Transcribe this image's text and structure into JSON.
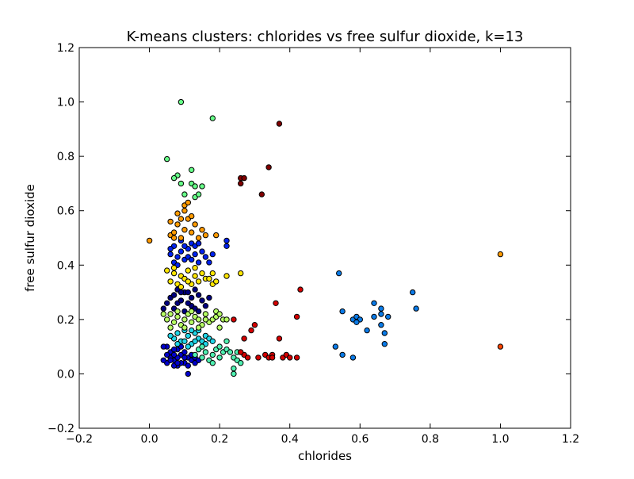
{
  "chart_data": {
    "type": "scatter",
    "title": "K-means clusters: chlorides vs free sulfur dioxide, k=13",
    "xlabel": "chlorides",
    "ylabel": "free sulfur dioxide",
    "xlim": [
      -0.2,
      1.2
    ],
    "ylim": [
      -0.2,
      1.2
    ],
    "xticks": [
      "−0.2",
      "0.0",
      "0.2",
      "0.4",
      "0.6",
      "0.8",
      "1.0",
      "1.2"
    ],
    "yticks": [
      "−0.2",
      "0.0",
      "0.2",
      "0.4",
      "0.6",
      "0.8",
      "1.0",
      "1.2"
    ],
    "grid": false,
    "legend": "none",
    "series": [
      {
        "color": "#00007f",
        "points": [
          [
            0.06,
            0.28
          ],
          [
            0.08,
            0.26
          ],
          [
            0.1,
            0.3
          ],
          [
            0.12,
            0.25
          ],
          [
            0.14,
            0.29
          ],
          [
            0.07,
            0.24
          ],
          [
            0.09,
            0.27
          ],
          [
            0.11,
            0.3
          ],
          [
            0.13,
            0.24
          ],
          [
            0.15,
            0.27
          ],
          [
            0.08,
            0.31
          ],
          [
            0.1,
            0.23
          ],
          [
            0.12,
            0.28
          ],
          [
            0.05,
            0.26
          ],
          [
            0.16,
            0.25
          ],
          [
            0.04,
            0.24
          ],
          [
            0.11,
            0.26
          ],
          [
            0.09,
            0.3
          ],
          [
            0.13,
            0.31
          ],
          [
            0.07,
            0.29
          ],
          [
            0.17,
            0.28
          ],
          [
            0.14,
            0.23
          ]
        ]
      },
      {
        "color": "#0000cc",
        "points": [
          [
            0.05,
            0.04
          ],
          [
            0.06,
            0.06
          ],
          [
            0.07,
            0.05
          ],
          [
            0.08,
            0.03
          ],
          [
            0.09,
            0.07
          ],
          [
            0.1,
            0.04
          ],
          [
            0.11,
            0.06
          ],
          [
            0.12,
            0.05
          ],
          [
            0.06,
            0.08
          ],
          [
            0.07,
            0.03
          ],
          [
            0.05,
            0.07
          ],
          [
            0.08,
            0.06
          ],
          [
            0.04,
            0.05
          ],
          [
            0.09,
            0.04
          ],
          [
            0.1,
            0.08
          ],
          [
            0.11,
            0.03
          ],
          [
            0.12,
            0.07
          ],
          [
            0.13,
            0.04
          ],
          [
            0.06,
            0.05
          ],
          [
            0.07,
            0.07
          ],
          [
            0.08,
            0.09
          ],
          [
            0.05,
            0.1
          ],
          [
            0.09,
            0.1
          ],
          [
            0.1,
            0.06
          ],
          [
            0.11,
            0.0
          ],
          [
            0.04,
            0.1
          ],
          [
            0.13,
            0.06
          ],
          [
            0.14,
            0.05
          ],
          [
            0.07,
            0.09
          ],
          [
            0.08,
            0.04
          ]
        ]
      },
      {
        "color": "#0022ee",
        "points": [
          [
            0.06,
            0.44
          ],
          [
            0.07,
            0.47
          ],
          [
            0.08,
            0.43
          ],
          [
            0.09,
            0.49
          ],
          [
            0.1,
            0.42
          ],
          [
            0.11,
            0.46
          ],
          [
            0.12,
            0.48
          ],
          [
            0.13,
            0.44
          ],
          [
            0.14,
            0.41
          ],
          [
            0.15,
            0.45
          ],
          [
            0.16,
            0.43
          ],
          [
            0.17,
            0.41
          ],
          [
            0.18,
            0.44
          ],
          [
            0.07,
            0.41
          ],
          [
            0.09,
            0.45
          ],
          [
            0.11,
            0.43
          ],
          [
            0.13,
            0.47
          ],
          [
            0.06,
            0.46
          ],
          [
            0.22,
            0.47
          ],
          [
            0.22,
            0.49
          ],
          [
            0.08,
            0.4
          ],
          [
            0.12,
            0.42
          ],
          [
            0.14,
            0.48
          ],
          [
            0.1,
            0.47
          ]
        ]
      },
      {
        "color": "#0a7be8",
        "points": [
          [
            0.54,
            0.37
          ],
          [
            0.55,
            0.23
          ],
          [
            0.58,
            0.2
          ],
          [
            0.59,
            0.21
          ],
          [
            0.6,
            0.2
          ],
          [
            0.62,
            0.16
          ],
          [
            0.64,
            0.21
          ],
          [
            0.64,
            0.26
          ],
          [
            0.66,
            0.24
          ],
          [
            0.66,
            0.18
          ],
          [
            0.66,
            0.22
          ],
          [
            0.67,
            0.15
          ],
          [
            0.67,
            0.11
          ],
          [
            0.68,
            0.21
          ],
          [
            0.75,
            0.3
          ],
          [
            0.76,
            0.24
          ],
          [
            0.53,
            0.1
          ],
          [
            0.55,
            0.07
          ],
          [
            0.58,
            0.06
          ],
          [
            0.59,
            0.19
          ]
        ]
      },
      {
        "color": "#1fd6e8",
        "points": [
          [
            0.07,
            0.13
          ],
          [
            0.08,
            0.15
          ],
          [
            0.09,
            0.12
          ],
          [
            0.1,
            0.16
          ],
          [
            0.11,
            0.14
          ],
          [
            0.12,
            0.11
          ],
          [
            0.13,
            0.15
          ],
          [
            0.14,
            0.13
          ],
          [
            0.15,
            0.12
          ],
          [
            0.16,
            0.14
          ],
          [
            0.17,
            0.13
          ],
          [
            0.08,
            0.11
          ],
          [
            0.1,
            0.12
          ],
          [
            0.12,
            0.16
          ],
          [
            0.14,
            0.16
          ],
          [
            0.16,
            0.11
          ],
          [
            0.18,
            0.12
          ],
          [
            0.06,
            0.14
          ],
          [
            0.11,
            0.1
          ],
          [
            0.13,
            0.12
          ]
        ]
      },
      {
        "color": "#4ef0b0",
        "points": [
          [
            0.13,
            0.07
          ],
          [
            0.14,
            0.09
          ],
          [
            0.15,
            0.06
          ],
          [
            0.16,
            0.08
          ],
          [
            0.17,
            0.05
          ],
          [
            0.18,
            0.07
          ],
          [
            0.19,
            0.09
          ],
          [
            0.2,
            0.06
          ],
          [
            0.21,
            0.08
          ],
          [
            0.22,
            0.09
          ],
          [
            0.23,
            0.08
          ],
          [
            0.24,
            0.06
          ],
          [
            0.25,
            0.05
          ],
          [
            0.24,
            0.02
          ],
          [
            0.24,
            0.0
          ],
          [
            0.25,
            0.08
          ],
          [
            0.26,
            0.04
          ],
          [
            0.22,
            0.12
          ],
          [
            0.2,
            0.1
          ],
          [
            0.18,
            0.04
          ],
          [
            0.15,
            0.1
          ]
        ]
      },
      {
        "color": "#66ff88",
        "points": [
          [
            0.05,
            0.79
          ],
          [
            0.08,
            0.73
          ],
          [
            0.09,
            0.7
          ],
          [
            0.1,
            0.66
          ],
          [
            0.12,
            0.75
          ],
          [
            0.12,
            0.7
          ],
          [
            0.13,
            0.69
          ],
          [
            0.13,
            0.65
          ],
          [
            0.15,
            0.69
          ],
          [
            0.14,
            0.66
          ],
          [
            0.07,
            0.72
          ],
          [
            0.09,
            1.0
          ],
          [
            0.18,
            0.94
          ]
        ]
      },
      {
        "color": "#b6ff63",
        "points": [
          [
            0.05,
            0.2
          ],
          [
            0.06,
            0.22
          ],
          [
            0.07,
            0.19
          ],
          [
            0.08,
            0.21
          ],
          [
            0.09,
            0.18
          ],
          [
            0.1,
            0.2
          ],
          [
            0.11,
            0.22
          ],
          [
            0.12,
            0.19
          ],
          [
            0.13,
            0.21
          ],
          [
            0.14,
            0.2
          ],
          [
            0.15,
            0.18
          ],
          [
            0.16,
            0.22
          ],
          [
            0.17,
            0.19
          ],
          [
            0.18,
            0.2
          ],
          [
            0.19,
            0.21
          ],
          [
            0.2,
            0.17
          ],
          [
            0.21,
            0.2
          ],
          [
            0.22,
            0.2
          ],
          [
            0.06,
            0.17
          ],
          [
            0.08,
            0.23
          ],
          [
            0.1,
            0.17
          ],
          [
            0.12,
            0.23
          ],
          [
            0.14,
            0.17
          ],
          [
            0.16,
            0.2
          ],
          [
            0.19,
            0.23
          ],
          [
            0.04,
            0.22
          ],
          [
            0.2,
            0.22
          ]
        ]
      },
      {
        "color": "#ffe600",
        "points": [
          [
            0.06,
            0.34
          ],
          [
            0.07,
            0.37
          ],
          [
            0.08,
            0.33
          ],
          [
            0.09,
            0.36
          ],
          [
            0.1,
            0.35
          ],
          [
            0.11,
            0.38
          ],
          [
            0.12,
            0.33
          ],
          [
            0.13,
            0.36
          ],
          [
            0.14,
            0.34
          ],
          [
            0.15,
            0.37
          ],
          [
            0.16,
            0.35
          ],
          [
            0.17,
            0.35
          ],
          [
            0.18,
            0.33
          ],
          [
            0.19,
            0.34
          ],
          [
            0.18,
            0.37
          ],
          [
            0.22,
            0.36
          ],
          [
            0.26,
            0.37
          ],
          [
            0.07,
            0.39
          ],
          [
            0.09,
            0.32
          ],
          [
            0.11,
            0.34
          ],
          [
            0.13,
            0.39
          ],
          [
            0.05,
            0.38
          ]
        ]
      },
      {
        "color": "#ff9a00",
        "points": [
          [
            0.06,
            0.51
          ],
          [
            0.06,
            0.56
          ],
          [
            0.07,
            0.52
          ],
          [
            0.08,
            0.55
          ],
          [
            0.09,
            0.5
          ],
          [
            0.1,
            0.53
          ],
          [
            0.11,
            0.57
          ],
          [
            0.12,
            0.52
          ],
          [
            0.13,
            0.55
          ],
          [
            0.14,
            0.5
          ],
          [
            0.15,
            0.53
          ],
          [
            0.16,
            0.51
          ],
          [
            0.19,
            0.51
          ],
          [
            0.1,
            0.6
          ],
          [
            0.1,
            0.62
          ],
          [
            0.11,
            0.63
          ],
          [
            0.08,
            0.59
          ],
          [
            0.12,
            0.58
          ],
          [
            0.09,
            0.57
          ],
          [
            0.0,
            0.49
          ],
          [
            1.0,
            0.44
          ],
          [
            0.07,
            0.5
          ]
        ]
      },
      {
        "color": "#ff4500",
        "points": [
          [
            1.0,
            0.1
          ]
        ]
      },
      {
        "color": "#d40000",
        "points": [
          [
            0.24,
            0.2
          ],
          [
            0.27,
            0.07
          ],
          [
            0.28,
            0.06
          ],
          [
            0.29,
            0.16
          ],
          [
            0.3,
            0.18
          ],
          [
            0.31,
            0.06
          ],
          [
            0.33,
            0.07
          ],
          [
            0.34,
            0.06
          ],
          [
            0.35,
            0.07
          ],
          [
            0.36,
            0.26
          ],
          [
            0.37,
            0.13
          ],
          [
            0.38,
            0.06
          ],
          [
            0.39,
            0.07
          ],
          [
            0.4,
            0.06
          ],
          [
            0.42,
            0.06
          ],
          [
            0.42,
            0.21
          ],
          [
            0.43,
            0.31
          ],
          [
            0.27,
            0.13
          ],
          [
            0.26,
            0.08
          ],
          [
            0.35,
            0.06
          ]
        ]
      },
      {
        "color": "#800000",
        "points": [
          [
            0.26,
            0.72
          ],
          [
            0.26,
            0.7
          ],
          [
            0.27,
            0.72
          ],
          [
            0.32,
            0.66
          ],
          [
            0.34,
            0.76
          ],
          [
            0.37,
            0.92
          ]
        ]
      }
    ]
  }
}
